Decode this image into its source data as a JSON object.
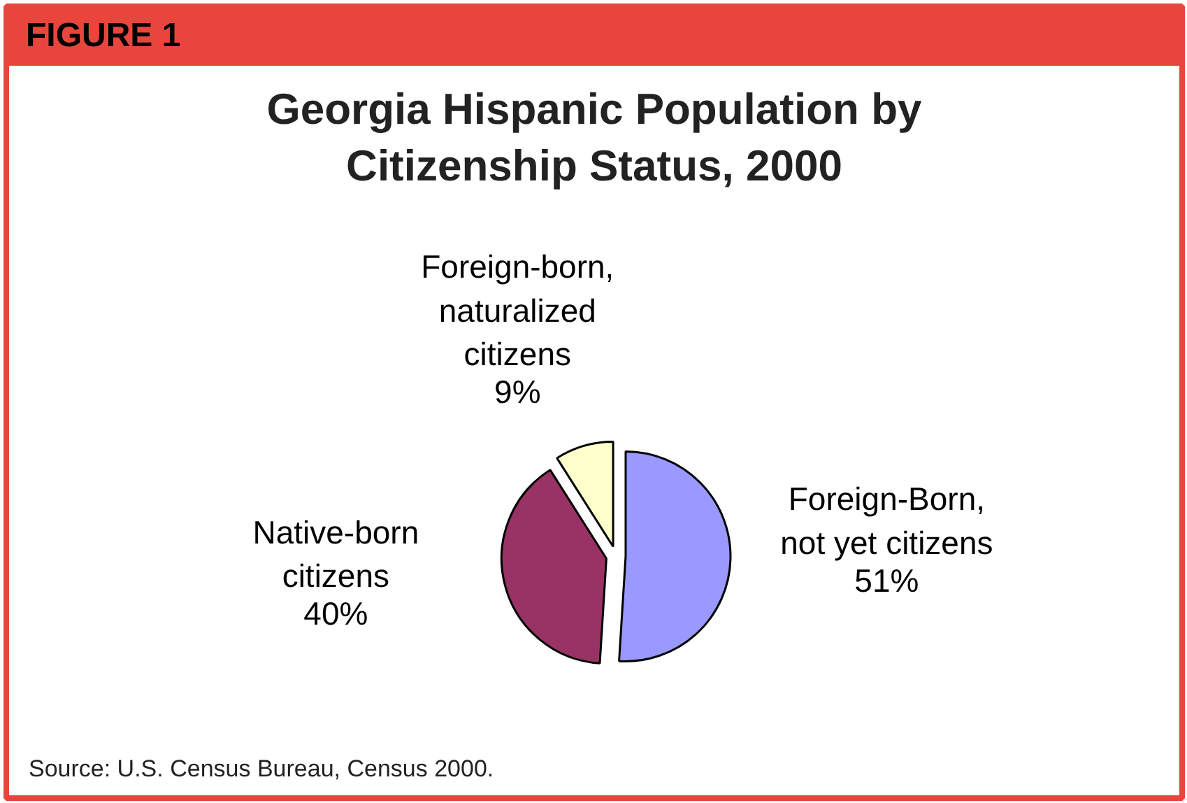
{
  "chart_data": {
    "type": "pie",
    "title": "Georgia Hispanic Population by\nCitizenship Status, 2000",
    "categories": [
      "Foreign-Born,\nnot yet citizens",
      "Native-born\ncitizens",
      "Foreign-born,\nnaturalized\ncitizens"
    ],
    "values": [
      51,
      40,
      9
    ],
    "colors": [
      "#9999ff",
      "#993366",
      "#ffffcc"
    ],
    "value_labels": [
      "51%",
      "40%",
      "9%"
    ],
    "annotations": [
      "FIGURE 1",
      "Source:  U.S. Census Bureau, Census 2000."
    ]
  }
}
